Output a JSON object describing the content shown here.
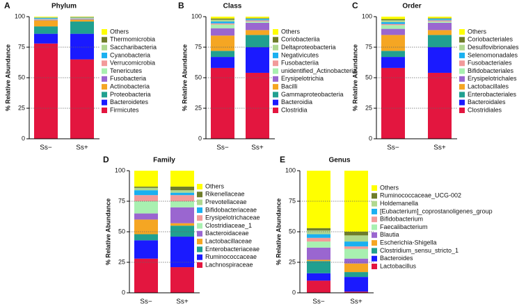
{
  "chart_data": [
    {
      "type": "bar",
      "stacked": true,
      "panel_label": "A",
      "title": "Phylum",
      "ylabel": "% Relative Abundance",
      "categories": [
        "Ss−",
        "Ss+"
      ],
      "ylim": [
        0,
        100
      ],
      "yticks": [
        0,
        25,
        50,
        75,
        100
      ],
      "grid": true,
      "series": [
        {
          "name": "Firmicutes",
          "color": "#e3163f",
          "values": [
            78,
            65
          ]
        },
        {
          "name": "Bacteroidetes",
          "color": "#1a1aff",
          "values": [
            8,
            21
          ]
        },
        {
          "name": "Proteobacteria",
          "color": "#20a090",
          "values": [
            6,
            10
          ]
        },
        {
          "name": "Actinobacteria",
          "color": "#f5a623",
          "values": [
            5,
            1.5
          ]
        },
        {
          "name": "Fusobacteria",
          "color": "#9a66d0",
          "values": [
            0.5,
            0.5
          ]
        },
        {
          "name": "Tenericutes",
          "color": "#a8f0b0",
          "values": [
            0.5,
            0.5
          ]
        },
        {
          "name": "Verrucomicrobia",
          "color": "#f29a9a",
          "values": [
            0.3,
            0.3
          ]
        },
        {
          "name": "Cyanobacteria",
          "color": "#1ab0f0",
          "values": [
            0.7,
            0.3
          ]
        },
        {
          "name": "Saccharibacteria",
          "color": "#b0d890",
          "values": [
            0.3,
            0.3
          ]
        },
        {
          "name": "Thermomicrobia",
          "color": "#6f7d2a",
          "values": [
            0.2,
            0.3
          ]
        },
        {
          "name": "Others",
          "color": "#ffff00",
          "values": [
            0.5,
            0.3
          ]
        }
      ]
    },
    {
      "type": "bar",
      "stacked": true,
      "panel_label": "B",
      "title": "Class",
      "ylabel": "% Relative Abundance",
      "categories": [
        "Ss−",
        "Ss+"
      ],
      "ylim": [
        0,
        100
      ],
      "yticks": [
        0,
        25,
        50,
        75,
        100
      ],
      "grid": true,
      "series": [
        {
          "name": "Clostridia",
          "color": "#e3163f",
          "values": [
            58,
            54
          ]
        },
        {
          "name": "Bacteroidia",
          "color": "#1a1aff",
          "values": [
            9,
            21
          ]
        },
        {
          "name": "Gammaproteobacteria",
          "color": "#20a090",
          "values": [
            5,
            10
          ]
        },
        {
          "name": "Bacilli",
          "color": "#f5a623",
          "values": [
            12.5,
            4
          ]
        },
        {
          "name": "Erysipelotrichia",
          "color": "#9a66d0",
          "values": [
            6,
            6
          ]
        },
        {
          "name": "unidentified_Actinobacteria",
          "color": "#a8f0b0",
          "values": [
            3,
            1
          ]
        },
        {
          "name": "Fusobacteriia",
          "color": "#f29a9a",
          "values": [
            1,
            1
          ]
        },
        {
          "name": "Negativicutes",
          "color": "#1ab0f0",
          "values": [
            1.5,
            1
          ]
        },
        {
          "name": "Deltaproteobacteria",
          "color": "#b0d890",
          "values": [
            1.5,
            0.5
          ]
        },
        {
          "name": "Coriobacteriia",
          "color": "#6f7d2a",
          "values": [
            1,
            0.5
          ]
        },
        {
          "name": "Others",
          "color": "#ffff00",
          "values": [
            1.5,
            1
          ]
        }
      ]
    },
    {
      "type": "bar",
      "stacked": true,
      "panel_label": "C",
      "title": "Order",
      "ylabel": "% Relative Abundance",
      "categories": [
        "Ss−",
        "Ss+"
      ],
      "ylim": [
        0,
        100
      ],
      "yticks": [
        0,
        25,
        50,
        75,
        100
      ],
      "grid": true,
      "series": [
        {
          "name": "Clostridiales",
          "color": "#e3163f",
          "values": [
            58,
            54
          ]
        },
        {
          "name": "Bacteroidales",
          "color": "#1a1aff",
          "values": [
            9,
            21
          ]
        },
        {
          "name": "Enterobacteriales",
          "color": "#20a090",
          "values": [
            5,
            10
          ]
        },
        {
          "name": "Lactobacillales",
          "color": "#f5a623",
          "values": [
            13,
            4
          ]
        },
        {
          "name": "Erysipelotrichales",
          "color": "#9a66d0",
          "values": [
            5,
            6
          ]
        },
        {
          "name": "Bifidobacteriales",
          "color": "#a8f0b0",
          "values": [
            3,
            1
          ]
        },
        {
          "name": "Fusobacteriales",
          "color": "#f29a9a",
          "values": [
            1,
            1
          ]
        },
        {
          "name": "Selenomonadales",
          "color": "#1ab0f0",
          "values": [
            1.5,
            1
          ]
        },
        {
          "name": "Desulfovibrionales",
          "color": "#b0d890",
          "values": [
            1.5,
            0.5
          ]
        },
        {
          "name": "Coriobacteriales",
          "color": "#6f7d2a",
          "values": [
            1,
            0.5
          ]
        },
        {
          "name": "Others",
          "color": "#ffff00",
          "values": [
            2,
            1
          ]
        }
      ]
    },
    {
      "type": "bar",
      "stacked": true,
      "panel_label": "D",
      "title": "Family",
      "ylabel": "% Relative Abundance",
      "categories": [
        "Ss−",
        "Ss+"
      ],
      "ylim": [
        0,
        100
      ],
      "yticks": [
        0,
        25,
        50,
        75,
        100
      ],
      "grid": true,
      "series": [
        {
          "name": "Lachnospiraceae",
          "color": "#e3163f",
          "values": [
            28,
            21
          ]
        },
        {
          "name": "Ruminococcaceae",
          "color": "#1a1aff",
          "values": [
            15,
            25
          ]
        },
        {
          "name": "Enterobacteriaceae",
          "color": "#20a090",
          "values": [
            5,
            9
          ]
        },
        {
          "name": "Lactobacillaceae",
          "color": "#f5a623",
          "values": [
            12,
            2
          ]
        },
        {
          "name": "Bacteroidaceae",
          "color": "#9a66d0",
          "values": [
            5,
            13
          ]
        },
        {
          "name": "Clostridiaceae_1",
          "color": "#a8f0b0",
          "values": [
            10,
            5
          ]
        },
        {
          "name": "Erysipelotrichaceae",
          "color": "#f29a9a",
          "values": [
            5,
            5
          ]
        },
        {
          "name": "Bifidobacteriaceae",
          "color": "#1ab0f0",
          "values": [
            4,
            2
          ]
        },
        {
          "name": "Prevotellaceae",
          "color": "#b0d890",
          "values": [
            2,
            2
          ]
        },
        {
          "name": "Rikenellaceae",
          "color": "#6f7d2a",
          "values": [
            1,
            3
          ]
        },
        {
          "name": "Others",
          "color": "#ffff00",
          "values": [
            13,
            13
          ]
        }
      ]
    },
    {
      "type": "bar",
      "stacked": true,
      "panel_label": "E",
      "title": "Genus",
      "ylabel": "% Relative Abundance",
      "categories": [
        "Ss−",
        "Ss+"
      ],
      "ylim": [
        0,
        100
      ],
      "yticks": [
        0,
        25,
        50,
        75,
        100
      ],
      "grid": true,
      "series": [
        {
          "name": "Lactobacillus",
          "color": "#e3163f",
          "values": [
            10,
            1
          ]
        },
        {
          "name": "Bacteroides",
          "color": "#1a1aff",
          "values": [
            6,
            12
          ]
        },
        {
          "name": "Clostridium_sensu_stricto_1",
          "color": "#20a090",
          "values": [
            10,
            4
          ]
        },
        {
          "name": "Escherichia-Shigella",
          "color": "#f5a623",
          "values": [
            1,
            7
          ]
        },
        {
          "name": "Blautia",
          "color": "#9a66d0",
          "values": [
            10,
            4
          ]
        },
        {
          "name": "Faecalibacterium",
          "color": "#a8f0b0",
          "values": [
            5,
            8
          ]
        },
        {
          "name": "Bifidobacterium",
          "color": "#f29a9a",
          "values": [
            3,
            2
          ]
        },
        {
          "name": "[Eubacterium]_coprostanoligenes_group",
          "color": "#1ab0f0",
          "values": [
            3,
            4
          ]
        },
        {
          "name": "Holdemanella",
          "color": "#b0d890",
          "values": [
            3,
            5
          ]
        },
        {
          "name": "Ruminococcaceae_UCG-002",
          "color": "#6f7d2a",
          "values": [
            2,
            3
          ]
        },
        {
          "name": "Others",
          "color": "#ffff00",
          "values": [
            47,
            50
          ]
        }
      ]
    }
  ]
}
